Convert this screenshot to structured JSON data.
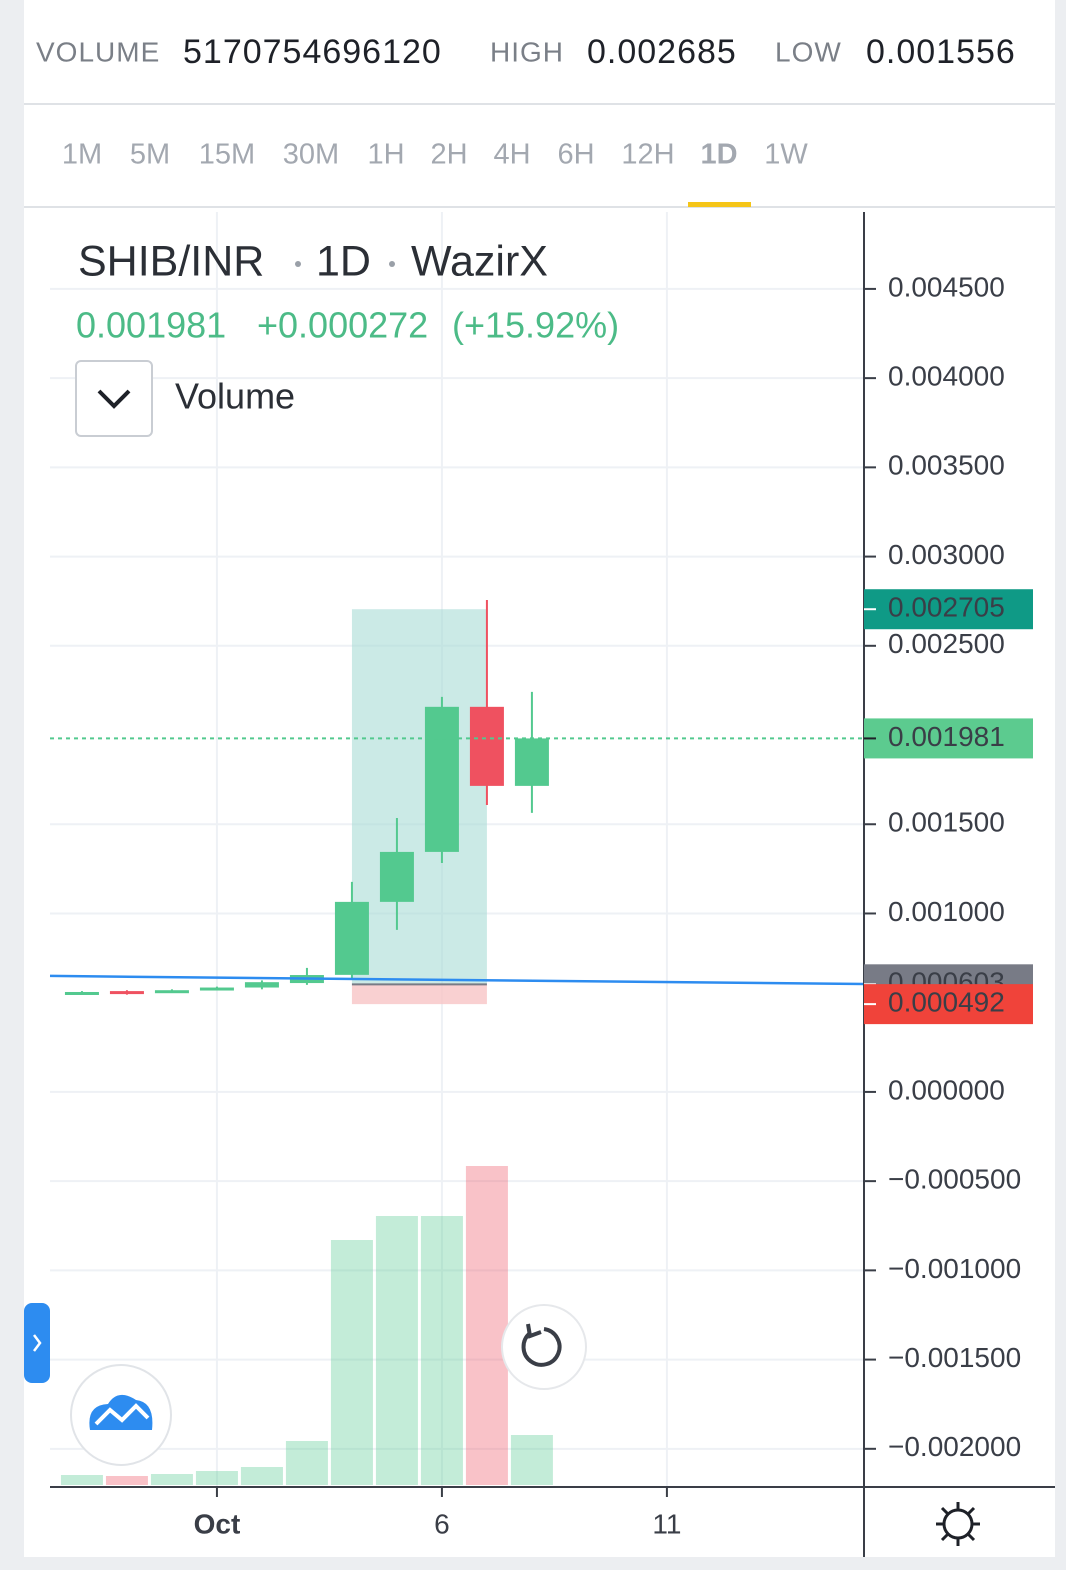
{
  "header": {
    "volume_label": "VOLUME",
    "volume": "5170754696120",
    "high_label": "HIGH",
    "high": "0.002685",
    "low_label": "LOW",
    "low": "0.001556"
  },
  "tabs": {
    "items": [
      "1M",
      "5M",
      "15M",
      "30M",
      "1H",
      "2H",
      "4H",
      "6H",
      "12H",
      "1D",
      "1W"
    ],
    "active": 9
  },
  "chart_data": {
    "type": "candlestick",
    "symbol": "SHIB/INR",
    "interval": "1D",
    "exchange": "WazirX",
    "last": "0.001981",
    "change": "+0.000272",
    "change_pct": "(+15.92%)",
    "volume_label": "Volume",
    "x": [
      -2,
      -1,
      0,
      1,
      2,
      3,
      4,
      5,
      6,
      7,
      8
    ],
    "open": [
      0.000555,
      0.000565,
      0.00056,
      0.000575,
      0.000585,
      0.00061,
      0.000656,
      0.001065,
      0.001345,
      0.002158,
      0.001715
    ],
    "high": [
      0.000565,
      0.00057,
      0.000575,
      0.00059,
      0.000625,
      0.000695,
      0.001177,
      0.001535,
      0.002214,
      0.002757,
      0.002242
    ],
    "low": [
      0.00055,
      0.000545,
      0.000555,
      0.00057,
      0.000575,
      0.0006,
      0.000628,
      0.000908,
      0.001283,
      0.001608,
      0.001564
    ],
    "close": [
      0.00056,
      0.000555,
      0.00057,
      0.000585,
      0.000615,
      0.000655,
      0.001065,
      0.001345,
      0.002158,
      0.001715,
      0.001981
    ],
    "volume": [
      10,
      9,
      11,
      14,
      18,
      44,
      245,
      269,
      269,
      319,
      50
    ],
    "up_color": "#53c98f",
    "down_color": "#ef5160",
    "xlim": [
      -2.71,
      15.38
    ],
    "xticks": [
      {
        "value": 1,
        "label": "Oct"
      },
      6,
      11
    ],
    "ylim": [
      -0.002214,
      0.004931
    ],
    "yticks": [
      {
        "value": -0.002,
        "label": "−0.002000"
      },
      {
        "value": -0.0015,
        "label": "−0.001500"
      },
      {
        "value": -0.001,
        "label": "−0.001000"
      },
      {
        "value": -0.0005,
        "label": "−0.000500"
      },
      {
        "value": 0,
        "label": "0.000000"
      },
      {
        "value": 0.001,
        "label": "0.001000"
      },
      {
        "value": 0.0015,
        "label": "0.001500"
      },
      {
        "value": 0.0025,
        "label": "0.002500"
      },
      {
        "value": 0.003,
        "label": "0.003000"
      },
      {
        "value": 0.0035,
        "label": "0.003500"
      },
      {
        "value": 0.004,
        "label": "0.004000"
      },
      {
        "value": 0.0045,
        "label": "0.004500"
      }
    ],
    "grid": true,
    "last_price": {
      "value": 0.001981,
      "label": "0.001981"
    },
    "trend_line": {
      "x": [
        -2.71,
        15.38
      ],
      "values": [
        0.00065,
        0.000605
      ],
      "color": "#2d8cf0"
    },
    "position": {
      "x": [
        4,
        7
      ],
      "target": {
        "value": 0.002705,
        "label": "0.002705"
      },
      "entry": {
        "value": 0.000603,
        "label": "0.000603"
      },
      "stop": {
        "value": 0.000492,
        "label": "0.000492"
      }
    }
  }
}
